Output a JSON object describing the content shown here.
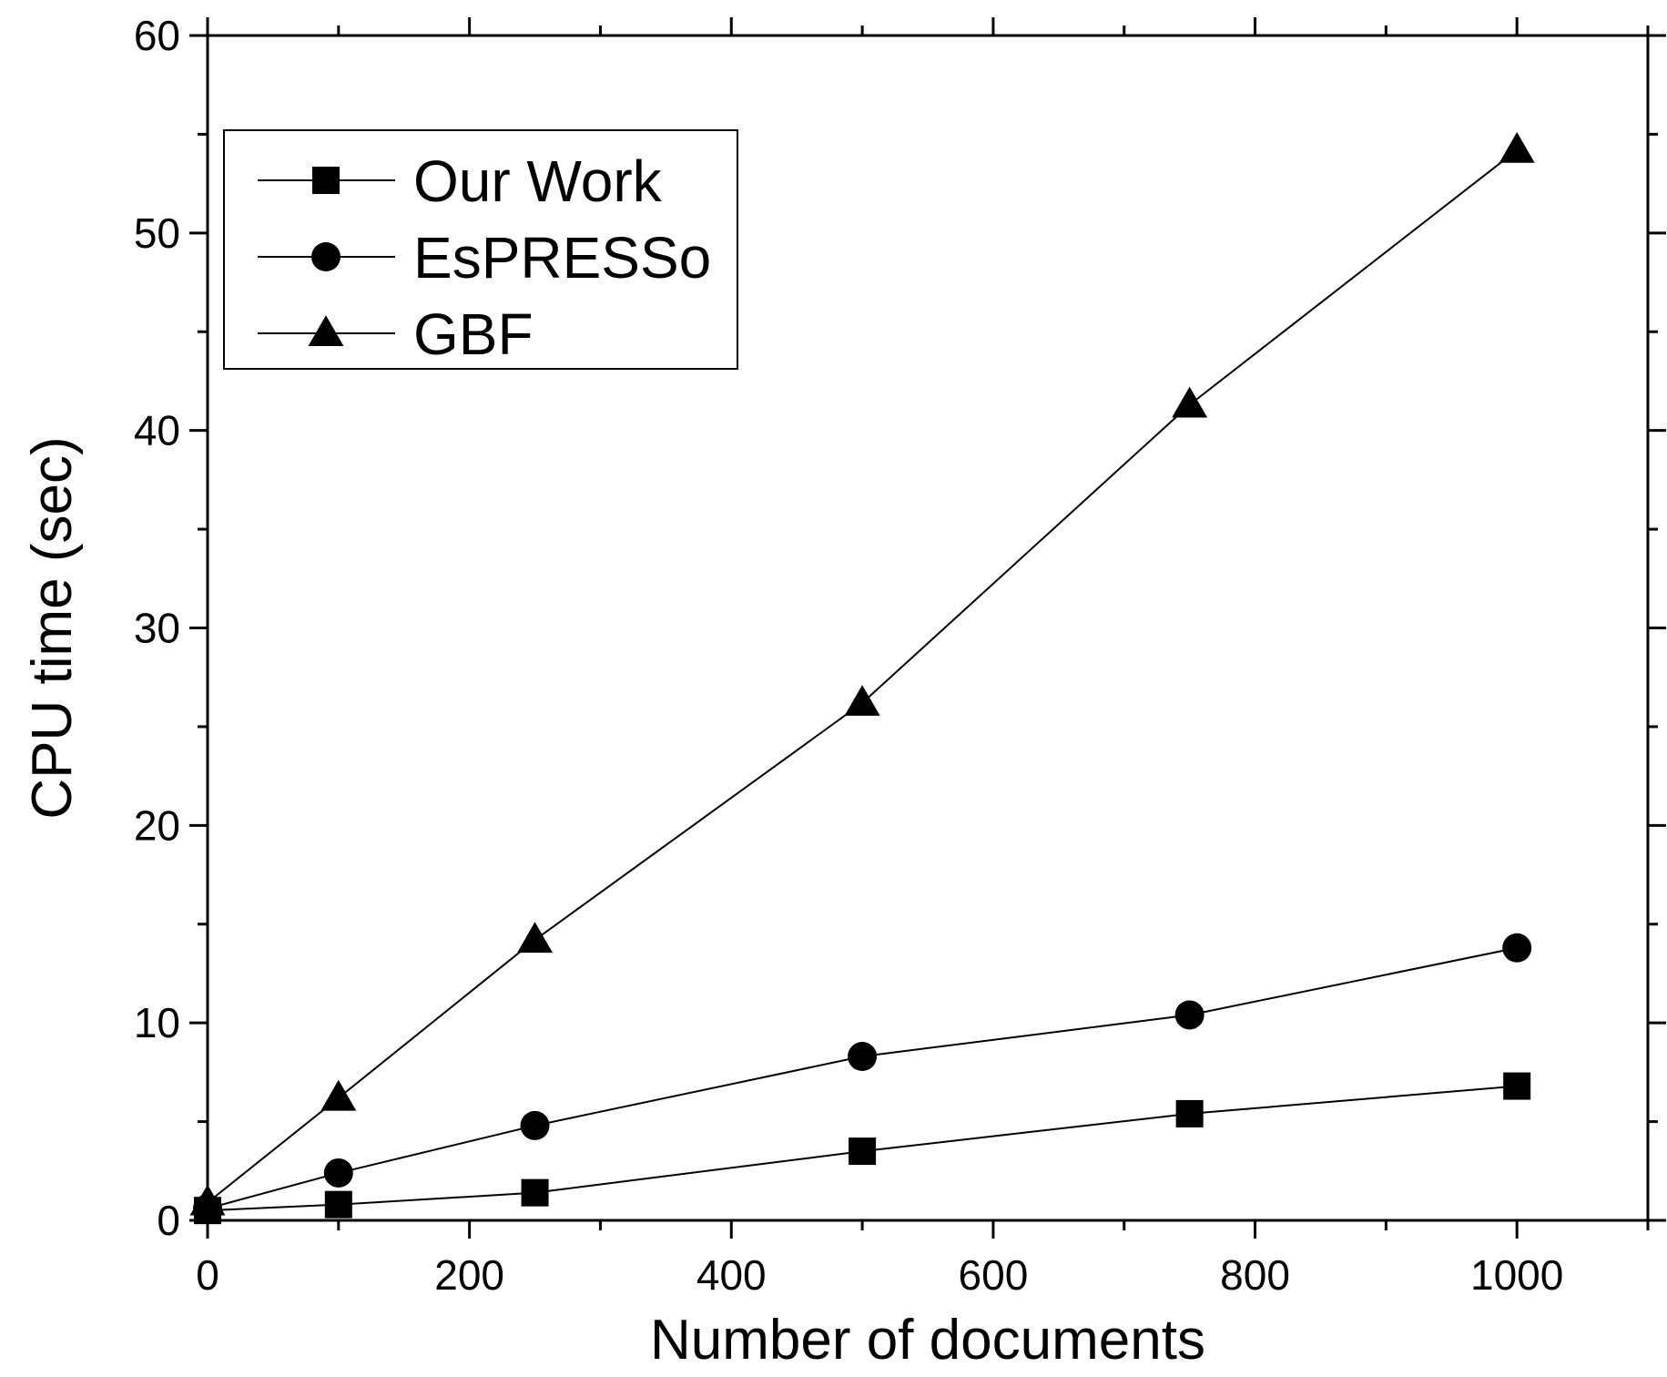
{
  "chart_data": {
    "type": "line",
    "title": "",
    "xlabel": "Number of documents",
    "ylabel": "CPU time (sec)",
    "xlim": [
      0,
      1100
    ],
    "ylim": [
      0,
      60
    ],
    "x_ticks": [
      0,
      200,
      400,
      600,
      800,
      1000
    ],
    "x_tick_labels": [
      "0",
      "200",
      "400",
      "600",
      "800",
      "1000"
    ],
    "y_ticks": [
      0,
      10,
      20,
      30,
      40,
      50,
      60
    ],
    "y_tick_labels": [
      "0",
      "10",
      "20",
      "30",
      "40",
      "50",
      "60"
    ],
    "x_minor_step": 100,
    "y_minor_step": 5,
    "grid": false,
    "legend_position": "top-left",
    "series": [
      {
        "name": "Our Work",
        "marker": "square",
        "x": [
          0,
          100,
          250,
          500,
          750,
          1000
        ],
        "y": [
          0.5,
          0.8,
          1.4,
          3.5,
          5.4,
          6.8
        ]
      },
      {
        "name": "EsPRESSo",
        "marker": "circle",
        "x": [
          0,
          100,
          250,
          500,
          750,
          1000
        ],
        "y": [
          0.6,
          2.4,
          4.8,
          8.3,
          10.4,
          13.8
        ]
      },
      {
        "name": "GBF",
        "marker": "triangle",
        "x": [
          0,
          100,
          250,
          500,
          750,
          1000
        ],
        "y": [
          0.9,
          6.2,
          14.2,
          26.2,
          41.3,
          54.2
        ]
      }
    ],
    "colors": {
      "line": "#000000",
      "marker": "#000000",
      "background": "#ffffff"
    }
  }
}
